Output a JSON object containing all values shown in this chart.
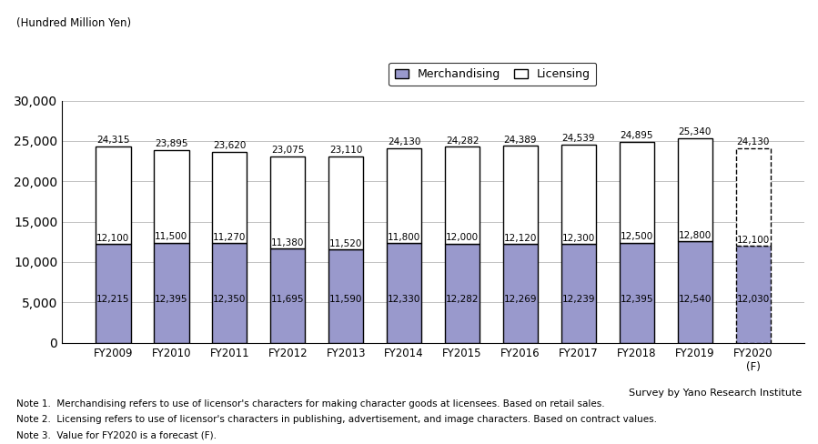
{
  "categories": [
    "FY2009",
    "FY2010",
    "FY2011",
    "FY2012",
    "FY2013",
    "FY2014",
    "FY2015",
    "FY2016",
    "FY2017",
    "FY2018",
    "FY2019",
    "FY2020\n(F)"
  ],
  "merchandising": [
    12215,
    12395,
    12350,
    11695,
    11590,
    12330,
    12282,
    12269,
    12239,
    12395,
    12540,
    12030
  ],
  "licensing": [
    12100,
    11500,
    11270,
    11380,
    11520,
    11800,
    12000,
    12120,
    12300,
    12500,
    12800,
    12100
  ],
  "totals": [
    24315,
    23895,
    23620,
    23075,
    23110,
    24130,
    24282,
    24389,
    24539,
    24895,
    25340,
    24130
  ],
  "bar_color_merchandising": "#9999CC",
  "bar_color_licensing": "#FFFFFF",
  "bar_edge_color": "#000000",
  "ylabel_text": "(Hundred Million Yen)",
  "ylim": [
    0,
    30000
  ],
  "yticks": [
    0,
    5000,
    10000,
    15000,
    20000,
    25000,
    30000
  ],
  "legend_labels": [
    "Merchandising",
    "Licensing"
  ],
  "note1": "Note 1.  Merchandising refers to use of licensor's characters for making character goods at licensees. Based on retail sales.",
  "note2": "Note 2.  Licensing refers to use of licensor's characters in publishing, advertisement, and image characters. Based on contract values.",
  "note3": "Note 3.  Value for FY2020 is a forecast (F).",
  "survey_note": "Survey by Yano Research Institute",
  "background_color": "#FFFFFF"
}
